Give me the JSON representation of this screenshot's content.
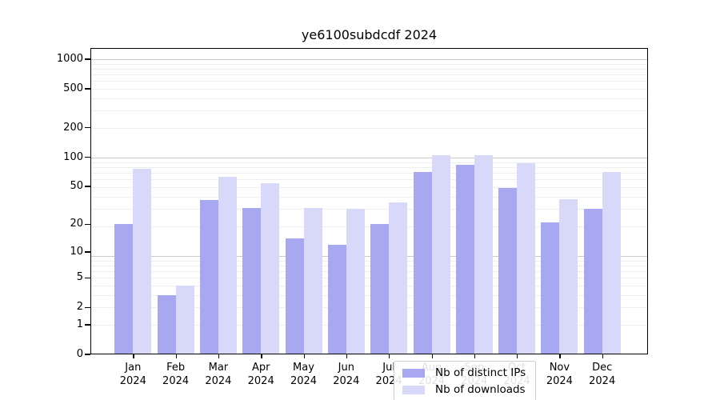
{
  "title": "ye6100subdcdf 2024",
  "legend": {
    "items": [
      {
        "label": "Nb of distinct IPs",
        "color": "#a8a8f0"
      },
      {
        "label": "Nb of downloads",
        "color": "#d8d8f8"
      }
    ]
  },
  "axes": {
    "y_tick_labels": [
      "0",
      "1",
      "2",
      "5",
      "10",
      "20",
      "50",
      "100",
      "200",
      "500",
      "1000"
    ],
    "x_year_label": "2024"
  },
  "chart_data": {
    "type": "bar",
    "title": "ye6100subdcdf 2024",
    "categories": [
      "Jan",
      "Feb",
      "Mar",
      "Apr",
      "May",
      "Jun",
      "Jul",
      "Aug",
      "Sep",
      "Oct",
      "Nov",
      "Dec"
    ],
    "category_year": "2024",
    "series": [
      {
        "name": "Nb of distinct IPs",
        "color": "#a8a8f0",
        "values": [
          20,
          3,
          36,
          30,
          14,
          12,
          20,
          70,
          84,
          48,
          21,
          29
        ]
      },
      {
        "name": "Nb of downloads",
        "color": "#d8d8f8",
        "values": [
          76,
          4,
          63,
          54,
          30,
          29,
          34,
          105,
          105,
          87,
          37,
          70
        ]
      }
    ],
    "xlabel": "",
    "ylabel": "",
    "yscale": "log10(1+x)",
    "yticks": [
      0,
      1,
      2,
      5,
      10,
      20,
      50,
      100,
      200,
      500,
      1000
    ],
    "ylim": [
      0,
      1300
    ],
    "grid": "horizontal",
    "grid_major_color": "#c9c9c9",
    "grid_minor_color": "#eeeeee",
    "legend_position": "lower-center-inside"
  }
}
